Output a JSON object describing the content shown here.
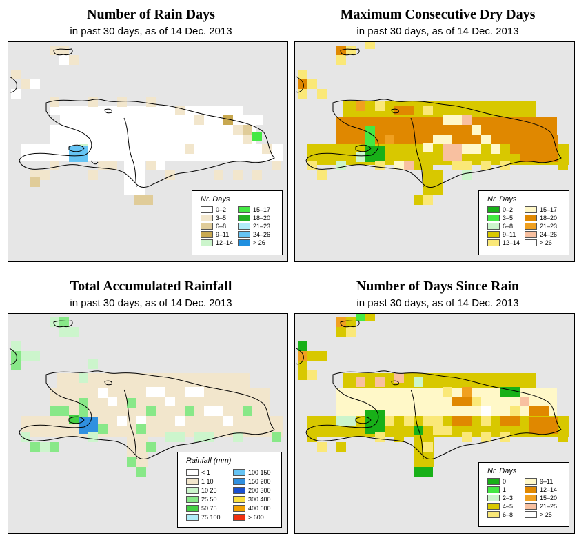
{
  "panels": {
    "rain_days": {
      "title": "Number of Rain Days",
      "subtitle": "in past 30 days, as of  14 Dec. 2013",
      "legend_title": "Nr. Days",
      "legend": [
        {
          "label": "0–2",
          "color": "#ffffff"
        },
        {
          "label": "3–5",
          "color": "#f2e6cc"
        },
        {
          "label": "6–8",
          "color": "#e0cc99"
        },
        {
          "label": "9–11",
          "color": "#c8a850"
        },
        {
          "label": "12–14",
          "color": "#ccf5cc"
        },
        {
          "label": "15–17",
          "color": "#44e844"
        },
        {
          "label": "18–20",
          "color": "#22b022"
        },
        {
          "label": "21–23",
          "color": "#b0ecf8"
        },
        {
          "label": "24–26",
          "color": "#66c4f4"
        },
        {
          "label": "> 26",
          "color": "#2090e0"
        }
      ]
    },
    "dry_days": {
      "title": "Maximum Consecutive Dry Days",
      "subtitle": "in past 30 days, as of  14 Dec. 2013",
      "legend_title": "Nr. Days",
      "legend": [
        {
          "label": "0–2",
          "color": "#18b018"
        },
        {
          "label": "3–5",
          "color": "#44e844"
        },
        {
          "label": "6–8",
          "color": "#ccf5cc"
        },
        {
          "label": "9–11",
          "color": "#d8c800"
        },
        {
          "label": "12–14",
          "color": "#fae878"
        },
        {
          "label": "15–17",
          "color": "#fff8c8"
        },
        {
          "label": "18–20",
          "color": "#e08800"
        },
        {
          "label": "21–23",
          "color": "#f0a020"
        },
        {
          "label": "24–26",
          "color": "#f8c0a0"
        },
        {
          "label": "> 26",
          "color": "#ffffff"
        }
      ]
    },
    "rainfall": {
      "title": "Total Accumulated Rainfall",
      "subtitle": "in past 30 days, as of  14 Dec. 2013",
      "legend_title": "Rainfall (mm)",
      "legend": [
        {
          "label": "<  1",
          "color": "#ffffff"
        },
        {
          "label": "1   10",
          "color": "#f2e6cc"
        },
        {
          "label": "10   25",
          "color": "#ccf5cc"
        },
        {
          "label": "25   50",
          "color": "#88e888"
        },
        {
          "label": "50   75",
          "color": "#44d044"
        },
        {
          "label": "75  100",
          "color": "#b0ecf8"
        },
        {
          "label": "100  150",
          "color": "#66c4f4"
        },
        {
          "label": "150  200",
          "color": "#3090e0"
        },
        {
          "label": "200  300",
          "color": "#1a50d0"
        },
        {
          "label": "300  400",
          "color": "#fae040"
        },
        {
          "label": "400  600",
          "color": "#f0a000"
        },
        {
          "label": "> 600",
          "color": "#f03010"
        }
      ]
    },
    "days_since": {
      "title": "Number of Days Since Rain",
      "subtitle": "in past 30 days, as of  14 Dec. 2013",
      "legend_title": "Nr. Days",
      "legend": [
        {
          "label": "0",
          "color": "#18b018"
        },
        {
          "label": "1",
          "color": "#44e844"
        },
        {
          "label": "2–3",
          "color": "#ccf5cc"
        },
        {
          "label": "4–5",
          "color": "#d8c800"
        },
        {
          "label": "6–8",
          "color": "#fae878"
        },
        {
          "label": "9–11",
          "color": "#fff8c8"
        },
        {
          "label": "12–14",
          "color": "#e08800"
        },
        {
          "label": "15–20",
          "color": "#f0a020"
        },
        {
          "label": "21–25",
          "color": "#f8c0a0"
        },
        {
          "label": "> 25",
          "color": "#ffffff"
        }
      ]
    }
  }
}
